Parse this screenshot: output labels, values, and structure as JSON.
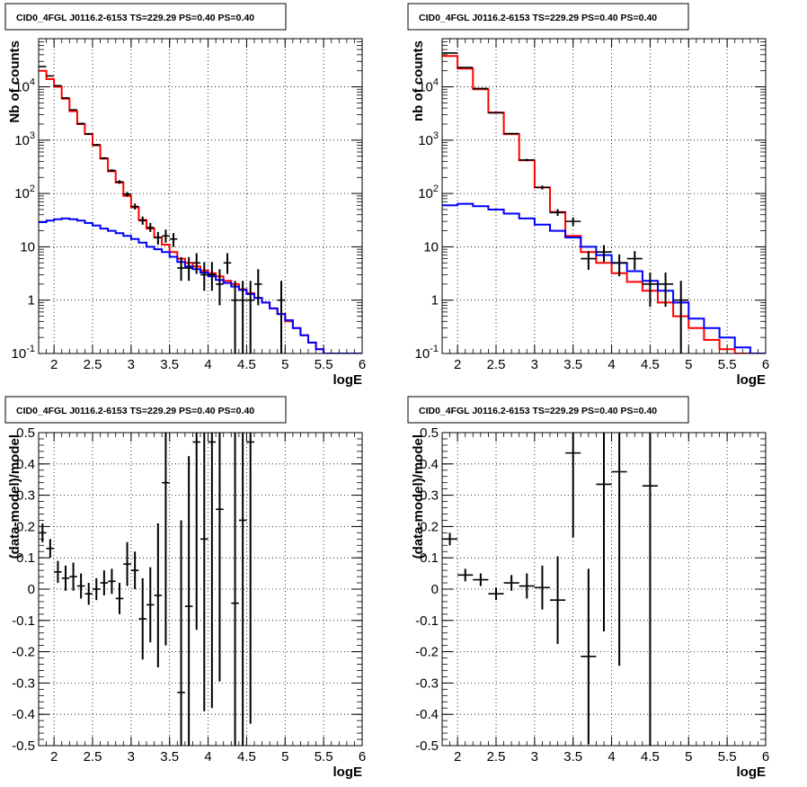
{
  "chart_data": [
    {
      "panel": "top-left",
      "type": "line",
      "title": "CID0_4FGL J0116.2-6153 TS=229.29 PS=0.40 PS=0.40",
      "xlabel": "logE",
      "ylabel": "Nb of counts",
      "xlim": [
        1.8,
        6.0
      ],
      "ylim": [
        0.1,
        80000
      ],
      "yscale": "log",
      "grid": true,
      "xticks": [
        "2",
        "2.5",
        "3",
        "3.5",
        "4",
        "4.5",
        "5",
        "5.5",
        "6"
      ],
      "yticks": [
        "10^-1",
        "1",
        "10",
        "10^2",
        "10^3",
        "10^4"
      ],
      "series": [
        {
          "role": "total-model",
          "color": "#ff0000",
          "style": "step",
          "binwidth": 0.1,
          "x": [
            1.85,
            1.95,
            2.05,
            2.15,
            2.25,
            2.35,
            2.45,
            2.55,
            2.65,
            2.75,
            2.85,
            2.95,
            3.05,
            3.15,
            3.25,
            3.35,
            3.45,
            3.55,
            3.65,
            3.75,
            3.85,
            3.95,
            4.05,
            4.15,
            4.25,
            4.35,
            4.45,
            4.55,
            4.65,
            4.75,
            4.85,
            4.95,
            5.05,
            5.15,
            5.25,
            5.35,
            5.45,
            5.55,
            5.65,
            5.75,
            5.85,
            5.95
          ],
          "y": [
            20000,
            14000,
            10000,
            6000,
            3500,
            2000,
            1300,
            800,
            450,
            260,
            160,
            90,
            55,
            32,
            22,
            15,
            11,
            8,
            6,
            5,
            4.3,
            3.6,
            3.2,
            2.8,
            2.3,
            2.0,
            1.6,
            1.35,
            1.1,
            0.9,
            0.7,
            0.55,
            0.4,
            0.3,
            0.22,
            0.16,
            0.12,
            0.1,
            0.1,
            0.1,
            0.1,
            0.1
          ]
        },
        {
          "role": "source-model",
          "color": "#0000ff",
          "style": "step",
          "binwidth": 0.1,
          "x": [
            1.85,
            1.95,
            2.05,
            2.15,
            2.25,
            2.35,
            2.45,
            2.55,
            2.65,
            2.75,
            2.85,
            2.95,
            3.05,
            3.15,
            3.25,
            3.35,
            3.45,
            3.55,
            3.65,
            3.75,
            3.85,
            3.95,
            4.05,
            4.15,
            4.25,
            4.35,
            4.45,
            4.55,
            4.65,
            4.75,
            4.85,
            4.95,
            5.05,
            5.15,
            5.25,
            5.35,
            5.45,
            5.55,
            5.65,
            5.75,
            5.85,
            5.95
          ],
          "y": [
            29,
            31,
            33,
            34,
            33,
            31,
            28,
            25,
            22,
            20,
            18,
            16,
            14,
            12,
            10,
            9,
            8,
            6.5,
            5.2,
            4.3,
            3.8,
            3.3,
            2.8,
            2.4,
            2.1,
            1.8,
            1.55,
            1.3,
            1.1,
            0.9,
            0.7,
            0.55,
            0.42,
            0.3,
            0.22,
            0.16,
            0.12,
            0.1,
            0.1,
            0.1,
            0.1,
            0.1
          ]
        },
        {
          "role": "data",
          "color": "#000000",
          "style": "errorbar",
          "xerr": 0.05,
          "x": [
            1.85,
            1.95,
            2.05,
            2.15,
            2.25,
            2.35,
            2.45,
            2.55,
            2.65,
            2.75,
            2.85,
            2.95,
            3.05,
            3.15,
            3.25,
            3.35,
            3.45,
            3.55,
            3.65,
            3.75,
            3.85,
            3.95,
            4.05,
            4.15,
            4.25,
            4.35,
            4.45,
            4.55,
            4.65,
            4.95
          ],
          "y": [
            24000,
            16000,
            10500,
            6200,
            3700,
            2050,
            1310,
            820,
            460,
            270,
            165,
            97,
            57,
            31,
            23,
            15,
            16,
            14,
            4,
            4,
            5,
            3,
            3,
            2,
            5,
            1,
            1,
            1,
            2,
            1
          ],
          "ylo": [
            23700,
            15700,
            10300,
            6100,
            3620,
            1990,
            1260,
            790,
            440,
            255,
            152,
            87,
            50,
            26,
            19,
            11,
            12,
            10,
            2.3,
            2.3,
            3.1,
            1.5,
            1.5,
            0.8,
            3.1,
            0.1,
            0.1,
            0.1,
            0.8,
            0.1
          ],
          "yhi": [
            24300,
            16300,
            10700,
            6300,
            3780,
            2110,
            1360,
            850,
            480,
            285,
            178,
            107,
            65,
            37,
            28,
            19,
            21,
            18,
            6.4,
            6.4,
            7.6,
            5.2,
            5.2,
            3.8,
            7.6,
            2.3,
            2.3,
            2.3,
            3.8,
            2.3
          ]
        }
      ]
    },
    {
      "panel": "top-right",
      "type": "line",
      "title": "CID0_4FGL J0116.2-6153 TS=229.29 PS=0.40 PS=0.40",
      "xlabel": "logE",
      "ylabel": "nb of counts",
      "xlim": [
        1.8,
        6.0
      ],
      "ylim": [
        0.1,
        80000
      ],
      "yscale": "log",
      "grid": true,
      "xticks": [
        "2",
        "2.5",
        "3",
        "3.5",
        "4",
        "4.5",
        "5",
        "5.5",
        "6"
      ],
      "yticks": [
        "10^-1",
        "1",
        "10",
        "10^2",
        "10^3",
        "10^4"
      ],
      "series": [
        {
          "role": "total-model",
          "color": "#ff0000",
          "style": "step",
          "binwidth": 0.2,
          "x": [
            1.9,
            2.1,
            2.3,
            2.5,
            2.7,
            2.9,
            3.1,
            3.3,
            3.5,
            3.7,
            3.9,
            4.1,
            4.3,
            4.5,
            4.7,
            4.9,
            5.1,
            5.3,
            5.5,
            5.7,
            5.9
          ],
          "y": [
            38000,
            22000,
            9000,
            3300,
            1300,
            420,
            130,
            45,
            16,
            8,
            5,
            3.2,
            2.2,
            1.5,
            0.9,
            0.5,
            0.3,
            0.18,
            0.12,
            0.1,
            0.1
          ]
        },
        {
          "role": "source-model",
          "color": "#0000ff",
          "style": "step",
          "binwidth": 0.2,
          "x": [
            1.9,
            2.1,
            2.3,
            2.5,
            2.7,
            2.9,
            3.1,
            3.3,
            3.5,
            3.7,
            3.9,
            4.1,
            4.3,
            4.5,
            4.7,
            4.9,
            5.1,
            5.3,
            5.5,
            5.7,
            5.9
          ],
          "y": [
            60,
            64,
            58,
            50,
            42,
            34,
            26,
            20,
            15,
            10,
            7,
            5,
            3.5,
            2.3,
            1.5,
            0.9,
            0.45,
            0.3,
            0.2,
            0.13,
            0.1
          ]
        },
        {
          "role": "data",
          "color": "#000000",
          "style": "errorbar",
          "xerr": 0.1,
          "x": [
            1.9,
            2.1,
            2.3,
            2.5,
            2.7,
            2.9,
            3.1,
            3.3,
            3.5,
            3.7,
            3.9,
            4.1,
            4.3,
            4.5,
            4.7,
            4.9
          ],
          "y": [
            43000,
            23000,
            9300,
            3250,
            1330,
            425,
            130,
            44,
            30,
            6,
            8,
            5,
            6,
            2,
            2,
            1
          ],
          "ylo": [
            42800,
            22850,
            9200,
            3190,
            1290,
            404,
            119,
            38,
            24.5,
            3.7,
            5.2,
            2.8,
            3.7,
            0.75,
            0.75,
            0.1
          ],
          "yhi": [
            43200,
            23150,
            9400,
            3310,
            1370,
            446,
            141,
            51,
            35.5,
            8.3,
            10.8,
            7.2,
            8.3,
            3.3,
            3.3,
            2.3
          ]
        }
      ]
    },
    {
      "panel": "bottom-left",
      "type": "scatter",
      "title": "CID0_4FGL J0116.2-6153 TS=229.29 PS=0.40 PS=0.40",
      "xlabel": "logE",
      "ylabel": "(data-model)/model",
      "xlim": [
        1.8,
        6.0
      ],
      "ylim": [
        -0.5,
        0.5
      ],
      "grid": true,
      "xticks": [
        "2",
        "2.5",
        "3",
        "3.5",
        "4",
        "4.5",
        "5",
        "5.5",
        "6"
      ],
      "yticks": [
        "-0.5",
        "-0.4",
        "-0.3",
        "-0.2",
        "-0.1",
        "0",
        "0.1",
        "0.2",
        "0.3",
        "0.4",
        "0.5"
      ],
      "series": [
        {
          "role": "residuals",
          "color": "#000000",
          "style": "errorbar",
          "xerr": 0.05,
          "x": [
            1.85,
            1.95,
            2.05,
            2.15,
            2.25,
            2.35,
            2.45,
            2.55,
            2.65,
            2.75,
            2.85,
            2.95,
            3.05,
            3.15,
            3.25,
            3.35,
            3.45,
            3.65,
            3.75,
            3.85,
            3.95,
            4.05,
            4.15,
            4.35,
            4.45,
            4.55
          ],
          "y": [
            0.18,
            0.13,
            0.055,
            0.035,
            0.04,
            0.01,
            -0.015,
            0.0,
            0.02,
            0.025,
            -0.03,
            0.08,
            0.06,
            -0.095,
            -0.05,
            -0.02,
            0.34,
            -0.33,
            -0.055,
            0.47,
            0.16,
            0.47,
            0.255,
            -0.045,
            0.22,
            0.47
          ],
          "yerr": [
            0.03,
            0.03,
            0.035,
            0.04,
            0.045,
            0.04,
            0.035,
            0.035,
            0.04,
            0.04,
            0.05,
            0.07,
            0.06,
            0.13,
            0.12,
            0.23,
            0.52,
            0.55,
            0.48,
            0.6,
            0.55,
            0.85,
            0.55,
            0.7,
            0.85,
            0.9
          ]
        }
      ]
    },
    {
      "panel": "bottom-right",
      "type": "scatter",
      "title": "CID0_4FGL J0116.2-6153 TS=229.29 PS=0.40 PS=0.40",
      "xlabel": "logE",
      "ylabel": "(data-model)/model",
      "xlim": [
        1.8,
        6.0
      ],
      "ylim": [
        -0.5,
        0.5
      ],
      "grid": true,
      "xticks": [
        "2",
        "2.5",
        "3",
        "3.5",
        "4",
        "4.5",
        "5",
        "5.5",
        "6"
      ],
      "yticks": [
        "-0.5",
        "-0.4",
        "-0.3",
        "-0.2",
        "-0.1",
        "0",
        "0.1",
        "0.2",
        "0.3",
        "0.4",
        "0.5"
      ],
      "series": [
        {
          "role": "residuals",
          "color": "#000000",
          "style": "errorbar",
          "xerr": 0.1,
          "x": [
            1.9,
            2.1,
            2.3,
            2.5,
            2.7,
            2.9,
            3.1,
            3.3,
            3.5,
            3.7,
            3.9,
            4.1,
            4.5
          ],
          "y": [
            0.16,
            0.045,
            0.03,
            -0.015,
            0.02,
            0.01,
            0.005,
            -0.035,
            0.435,
            -0.215,
            0.335,
            0.375,
            0.33
          ],
          "yerr": [
            0.02,
            0.02,
            0.02,
            0.02,
            0.025,
            0.04,
            0.07,
            0.14,
            0.27,
            0.28,
            0.47,
            0.62,
            0.85
          ]
        }
      ]
    }
  ]
}
